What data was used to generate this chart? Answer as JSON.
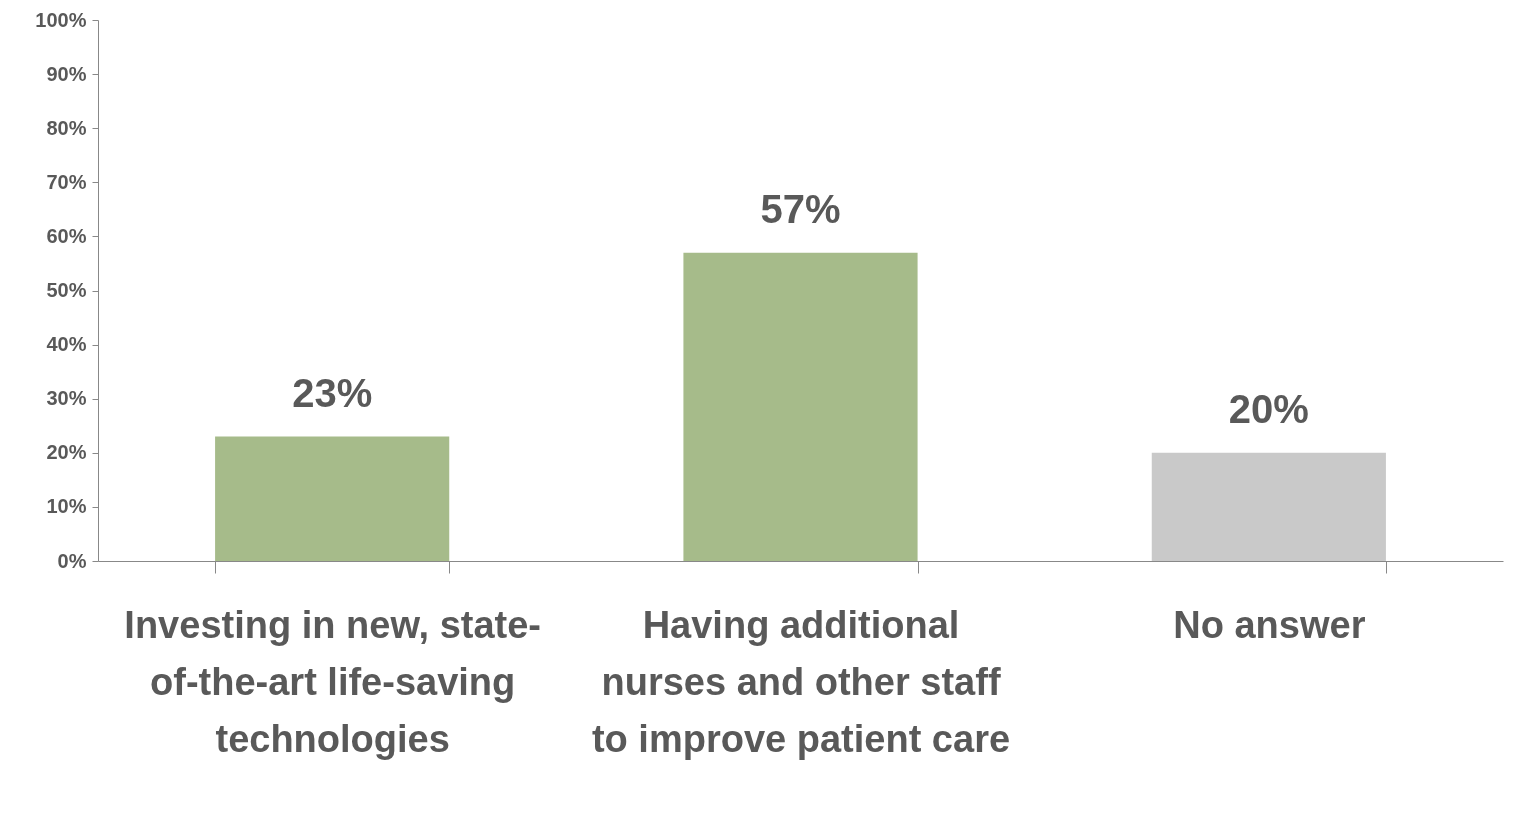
{
  "chart_data": {
    "type": "bar",
    "categories": [
      "Investing in new, state-of-the-art life-saving technologies",
      "Having additional nurses and other staff to improve patient care",
      "No answer"
    ],
    "values": [
      23,
      57,
      20
    ],
    "colors": [
      "#a6bb8a",
      "#a6bb8a",
      "#c9c9c9"
    ],
    "value_labels": [
      "23%",
      "57%",
      "20%"
    ],
    "ylim": [
      0,
      100
    ],
    "yticks": [
      {
        "value": 0,
        "label": "0%"
      },
      {
        "value": 10,
        "label": "10%"
      },
      {
        "value": 20,
        "label": "20%"
      },
      {
        "value": 30,
        "label": "30%"
      },
      {
        "value": 40,
        "label": "40%"
      },
      {
        "value": 50,
        "label": "50%"
      },
      {
        "value": 60,
        "label": "60%"
      },
      {
        "value": 70,
        "label": "70%"
      },
      {
        "value": 80,
        "label": "80%"
      },
      {
        "value": 90,
        "label": "90%"
      },
      {
        "value": 100,
        "label": "100%"
      }
    ]
  }
}
